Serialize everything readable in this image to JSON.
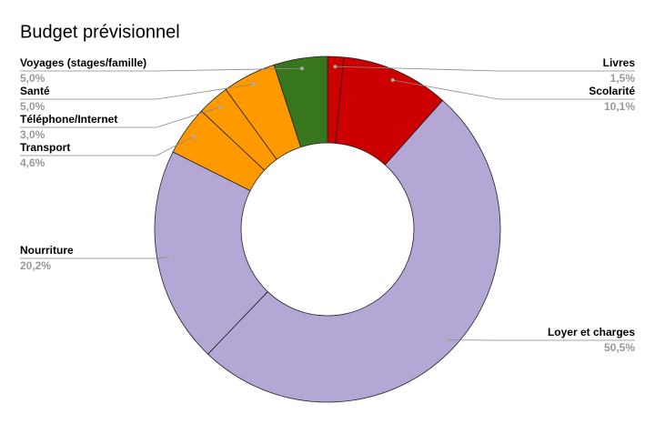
{
  "chart_data": {
    "type": "donut",
    "title": "Budget prévisionnel",
    "categories": [
      "Livres",
      "Scolarité",
      "Loyer et charges",
      "Nourriture",
      "Transport",
      "Téléphone/Internet",
      "Santé",
      "Voyages (stages/famille)"
    ],
    "values": [
      1.5,
      10.1,
      50.5,
      20.2,
      4.6,
      3.0,
      5.0,
      5.0
    ],
    "value_labels": [
      "1,5%",
      "10,1%",
      "50,5%",
      "20,2%",
      "4,6%",
      "3,0%",
      "5,0%",
      "5,0%"
    ],
    "colors": [
      "#cc0000",
      "#cc0000",
      "#b4a7d6",
      "#b4a7d6",
      "#ff9900",
      "#ff9900",
      "#ff9900",
      "#38761d"
    ]
  }
}
